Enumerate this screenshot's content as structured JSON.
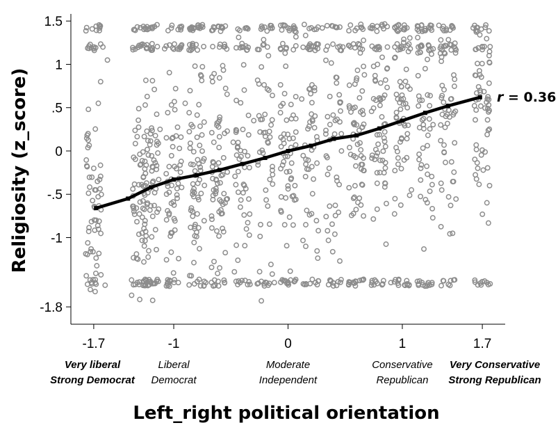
{
  "chart_data": {
    "type": "scatter",
    "title": "",
    "xlabel": "Left_right political orientation",
    "ylabel": "Religiosity (z_score)",
    "xlim": [
      -1.9,
      1.9
    ],
    "ylim": [
      -2.0,
      1.55
    ],
    "x_ticks": [
      {
        "value": -1.7,
        "label": "-1.7"
      },
      {
        "value": -1.0,
        "label": "-1"
      },
      {
        "value": 0.0,
        "label": "0"
      },
      {
        "value": 1.0,
        "label": "1"
      },
      {
        "value": 1.7,
        "label": "1.7"
      }
    ],
    "y_ticks": [
      {
        "value": 1.5,
        "label": "1.5"
      },
      {
        "value": 1.0,
        "label": "1"
      },
      {
        "value": 0.5,
        "label": ".5"
      },
      {
        "value": 0.0,
        "label": "0"
      },
      {
        "value": -0.5,
        "label": "-.5"
      },
      {
        "value": -1.0,
        "label": "-1"
      },
      {
        "value": -1.8,
        "label": "-1.8"
      }
    ],
    "category_labels": [
      {
        "x": -1.7,
        "lines": [
          "Very liberal",
          "Strong Democrat"
        ],
        "bold": true
      },
      {
        "x": -1.0,
        "lines": [
          "Liberal",
          "Democrat"
        ],
        "bold": false
      },
      {
        "x": 0.0,
        "lines": [
          "Moderate",
          "Independent"
        ],
        "bold": false
      },
      {
        "x": 1.0,
        "lines": [
          "Conservative",
          "Republican"
        ],
        "bold": false
      },
      {
        "x": 1.7,
        "lines": [
          "Very Conservative",
          "Strong Republican"
        ],
        "bold": true
      }
    ],
    "annotation": {
      "prefix": "r",
      "text": " = 0.36"
    },
    "fit_line": {
      "x": [
        -1.68,
        -1.4,
        -1.2,
        -1.0,
        -0.8,
        -0.6,
        -0.4,
        -0.2,
        0.0,
        0.2,
        0.4,
        0.6,
        0.8,
        1.0,
        1.2,
        1.4,
        1.68
      ],
      "y": [
        -0.66,
        -0.55,
        -0.42,
        -0.33,
        -0.28,
        -0.22,
        -0.15,
        -0.08,
        0.0,
        0.06,
        0.14,
        0.18,
        0.26,
        0.35,
        0.44,
        0.52,
        0.62
      ]
    },
    "scatter_series": {
      "name": "",
      "generation": "jittered",
      "x": [
        -1.72,
        -1.65,
        -1.6,
        -1.75,
        -1.68,
        -1.62,
        -1.7,
        -1.66,
        -1.73,
        -1.58,
        -1.69,
        -1.64,
        -1.32,
        -1.25,
        -1.18,
        -1.12,
        -1.08,
        -1.02,
        -0.96,
        -0.9,
        -0.85,
        -0.78,
        -0.72,
        -0.66,
        -0.6,
        -0.55,
        -0.48,
        -0.42,
        -0.36,
        -0.3,
        -0.24,
        -0.18,
        -0.12,
        -0.06,
        0.0,
        0.06,
        0.12,
        0.18,
        0.24,
        0.3,
        0.36,
        0.42,
        0.48,
        0.54,
        0.6,
        0.66,
        0.72,
        0.78,
        0.84,
        0.9,
        0.96,
        1.02,
        1.08,
        1.14,
        1.2,
        1.26,
        1.32,
        1.38,
        1.44,
        1.62,
        1.68,
        1.74,
        1.7,
        1.66
      ],
      "y": [
        -1.52,
        1.42,
        -1.55,
        0.2,
        -0.8,
        1.2,
        -0.2,
        0.55,
        -1.6,
        1.05,
        -0.45,
        0.8,
        -1.52,
        1.42,
        -0.35,
        0.25,
        1.18,
        -0.95,
        -1.52,
        0.55,
        1.42,
        -0.15,
        -1.52,
        0.8,
        1.2,
        -0.6,
        0.1,
        -1.52,
        1.42,
        0.35,
        -0.85,
        1.2,
        -1.52,
        0.05,
        1.42,
        -0.4,
        0.6,
        1.2,
        -1.52,
        1.42,
        -0.2,
        0.85,
        1.2,
        -1.52,
        0.3,
        -0.75,
        1.42,
        1.2,
        0.15,
        -1.52,
        0.6,
        1.42,
        -0.45,
        1.2,
        0.95,
        -1.52,
        1.45,
        0.4,
        -0.95,
        1.42,
        0.7,
        -1.52,
        1.2,
        -0.2
      ]
    }
  }
}
